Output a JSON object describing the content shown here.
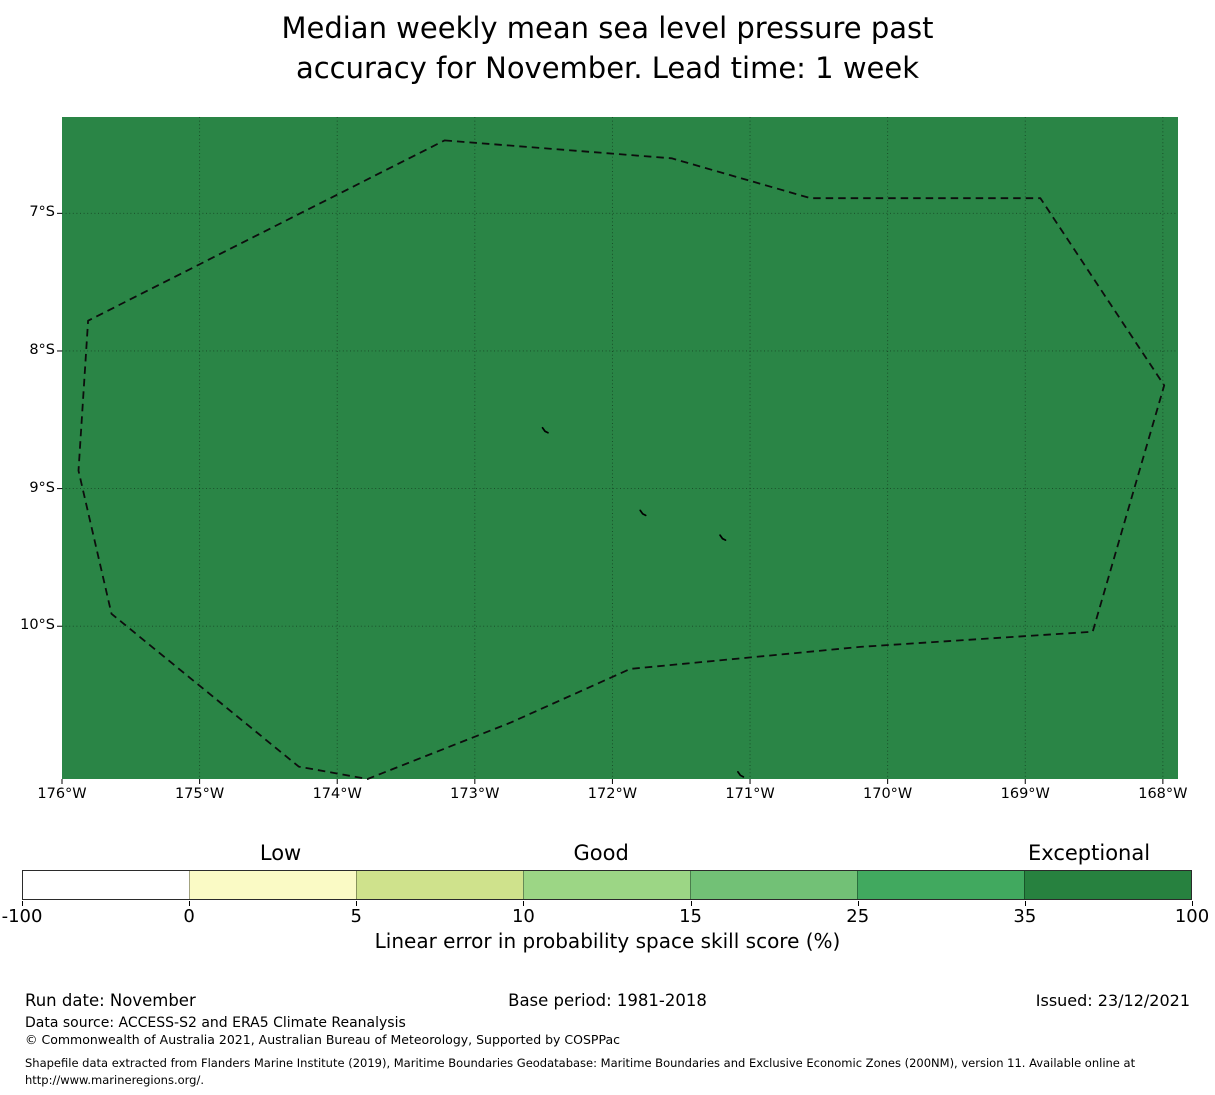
{
  "title": {
    "line1": "Median weekly mean sea level pressure past",
    "line2": "accuracy for November. Lead time: 1 week"
  },
  "chart_data": {
    "type": "heatmap",
    "subtype": "filled EEZ skill-score map (Tokelau region)",
    "title": "Median weekly mean sea level pressure past accuracy for November. Lead time: 1 week",
    "lon_range_degW": [
      176.0,
      167.89
    ],
    "lat_range_degS": [
      6.3,
      11.11
    ],
    "x_ticks": [
      {
        "label": "176°W",
        "lon": 176
      },
      {
        "label": "175°W",
        "lon": 175
      },
      {
        "label": "174°W",
        "lon": 174
      },
      {
        "label": "173°W",
        "lon": 173
      },
      {
        "label": "172°W",
        "lon": 172
      },
      {
        "label": "171°W",
        "lon": 171
      },
      {
        "label": "170°W",
        "lon": 170
      },
      {
        "label": "169°W",
        "lon": 169
      },
      {
        "label": "168°W",
        "lon": 168
      }
    ],
    "y_ticks": [
      {
        "label": "7°S",
        "lat": 7
      },
      {
        "label": "8°S",
        "lat": 8
      },
      {
        "label": "9°S",
        "lat": 9
      },
      {
        "label": "10°S",
        "lat": 10
      }
    ],
    "colors": {
      "map_fill": "#2a8546",
      "boundary_line": "#0d0d0d",
      "gridline": "rgba(0,0,0,0.45)"
    },
    "region": {
      "fill_value_bin": "35-100",
      "category": "Exceptional",
      "boundary_degW_degS": [
        [
          173.22,
          6.47
        ],
        [
          171.57,
          6.6
        ],
        [
          170.56,
          6.89
        ],
        [
          168.89,
          6.89
        ],
        [
          167.99,
          8.25
        ],
        [
          168.51,
          10.04
        ],
        [
          170.2,
          10.15
        ],
        [
          171.87,
          10.31
        ],
        [
          172.74,
          10.7
        ],
        [
          173.78,
          11.11
        ],
        [
          174.28,
          11.02
        ],
        [
          175.64,
          9.91
        ],
        [
          175.88,
          8.87
        ],
        [
          175.81,
          7.78
        ]
      ]
    },
    "islands_degW_degS": [
      [
        172.49,
        8.58
      ],
      [
        171.78,
        9.18
      ],
      [
        171.2,
        9.36
      ],
      [
        171.07,
        11.08
      ]
    ],
    "colorbar": {
      "boundaries": [
        -100,
        0,
        5,
        10,
        15,
        25,
        35,
        100
      ],
      "tick_labels": [
        "-100",
        "0",
        "5",
        "10",
        "15",
        "25",
        "35",
        "100"
      ],
      "colors": [
        "#ffffff",
        "#fafac5",
        "#cfe28c",
        "#9cd685",
        "#72c176",
        "#41a95f",
        "#27813f"
      ],
      "categories": [
        {
          "label": "Low",
          "pos_pct": 22.1
        },
        {
          "label": "Good",
          "pos_pct": 49.5
        },
        {
          "label": "Exceptional",
          "pos_pct": 91.2
        }
      ],
      "caption": "Linear error in probability space skill score (%)"
    }
  },
  "footer": {
    "run_date": "Run date: November",
    "base_period": "Base period: 1981-2018",
    "issued": "Issued: 23/12/2021",
    "data_source": "Data source: ACCESS-S2 and ERA5 Climate Reanalysis",
    "copyright": "© Commonwealth of Australia 2021, Australian Bureau of Meteorology, Supported by COSPPac",
    "shapefile_line1": "Shapefile data extracted from Flanders Marine Institute (2019), Maritime Boundaries Geodatabase: Maritime Boundaries and Exclusive Economic Zones (200NM), version 11. Available online at",
    "shapefile_line2": "http://www.marineregions.org/."
  }
}
